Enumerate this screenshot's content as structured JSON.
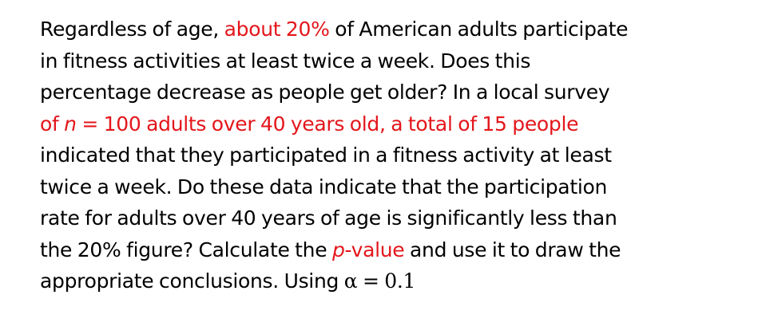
{
  "problem": {
    "line1": {
      "a": "Regardless of age, ",
      "b": "about 20%",
      "c": " of American adults participate"
    },
    "line2": "in fitness activities at least twice a week. Does this",
    "line3": "percentage decrease as people get older? In a local survey",
    "line4": {
      "a": "of ",
      "n": "n",
      "b": " = 100 adults over 40 years old, a total of 15 people"
    },
    "line5": "indicated that they participated in a fitness activity at least",
    "line6": "twice a week. Do these data indicate that the participation",
    "line7": "rate for adults over 40 years of age is significantly less than",
    "line8": {
      "a": "the 20% figure? Calculate the ",
      "p": "p",
      "b": "-value",
      "c": " and use it to draw the"
    },
    "line9": {
      "a": "appropriate conclusions. Using ",
      "math": "α = 0.1"
    }
  },
  "colors": {
    "highlight": "#e3161b",
    "text": "#000000",
    "background": "#ffffff"
  }
}
